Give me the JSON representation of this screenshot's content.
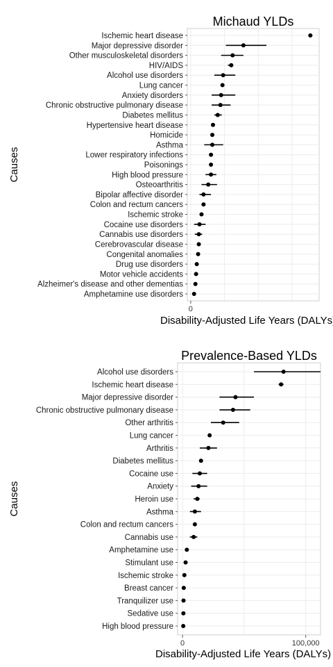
{
  "chart_data": [
    {
      "type": "scatter",
      "title": "Michaud YLDs",
      "xlabel": "Disability-Adjusted Life Years (DALYs)",
      "ylabel": "Causes",
      "xlim": [
        -5000,
        190000
      ],
      "xticks": [
        0
      ],
      "xtick_labels": [
        "0"
      ],
      "grid": true,
      "legend": "none",
      "point_color": "#000000",
      "points": [
        {
          "cause": "Ischemic heart disease",
          "value": 177000,
          "low": 174000,
          "high": 180000
        },
        {
          "cause": "Major depressive disorder",
          "value": 78000,
          "low": 52000,
          "high": 112000
        },
        {
          "cause": "Other musculoskeletal disorders",
          "value": 62000,
          "low": 45000,
          "high": 78000
        },
        {
          "cause": "HIV/AIDS",
          "value": 60000,
          "low": 55000,
          "high": 63000
        },
        {
          "cause": "Alcohol use disorders",
          "value": 48000,
          "low": 35000,
          "high": 66000
        },
        {
          "cause": "Lung cancer",
          "value": 47000,
          "low": 47000,
          "high": 47000
        },
        {
          "cause": "Anxiety disorders",
          "value": 45000,
          "low": 31000,
          "high": 66000
        },
        {
          "cause": "Chronic obstructive pulmonary disease",
          "value": 44000,
          "low": 31000,
          "high": 59000
        },
        {
          "cause": "Diabetes mellitus",
          "value": 40000,
          "low": 35000,
          "high": 46000
        },
        {
          "cause": "Hypertensive heart disease",
          "value": 33000,
          "low": 33000,
          "high": 33000
        },
        {
          "cause": "Homicide",
          "value": 32000,
          "low": 32000,
          "high": 32000
        },
        {
          "cause": "Asthma",
          "value": 32000,
          "low": 20000,
          "high": 48000
        },
        {
          "cause": "Lower respiratory infections",
          "value": 30000,
          "low": 30000,
          "high": 30000
        },
        {
          "cause": "Poisonings",
          "value": 30000,
          "low": 30000,
          "high": 30000
        },
        {
          "cause": "High blood pressure",
          "value": 30000,
          "low": 22000,
          "high": 38000
        },
        {
          "cause": "Osteoarthritis",
          "value": 26000,
          "low": 16000,
          "high": 39000
        },
        {
          "cause": "Bipolar affective disorder",
          "value": 19000,
          "low": 13000,
          "high": 30000
        },
        {
          "cause": "Colon and rectum cancers",
          "value": 19000,
          "low": 19000,
          "high": 19000
        },
        {
          "cause": "Ischemic stroke",
          "value": 16000,
          "low": 16000,
          "high": 16000
        },
        {
          "cause": "Cocaine use disorders",
          "value": 13000,
          "low": 5000,
          "high": 22000
        },
        {
          "cause": "Cannabis use disorders",
          "value": 12000,
          "low": 6000,
          "high": 17000
        },
        {
          "cause": "Cerebrovascular disease",
          "value": 12000,
          "low": 12000,
          "high": 12000
        },
        {
          "cause": "Congenital anomalies",
          "value": 11000,
          "low": 11000,
          "high": 11000
        },
        {
          "cause": "Drug use disorders",
          "value": 9000,
          "low": 9000,
          "high": 9000
        },
        {
          "cause": "Motor vehicle accidents",
          "value": 8000,
          "low": 8000,
          "high": 8000
        },
        {
          "cause": "Alzheimer's disease and other dementias",
          "value": 7000,
          "low": 7000,
          "high": 7000
        },
        {
          "cause": "Amphetamine use disorders",
          "value": 5000,
          "low": 5000,
          "high": 5000
        }
      ]
    },
    {
      "type": "scatter",
      "title": "Prevalence-Based YLDs",
      "xlabel": "Disability-Adjusted Life Years (DALYs)",
      "ylabel": "Causes",
      "xlim": [
        -4000,
        112000
      ],
      "xticks": [
        0,
        100000
      ],
      "xtick_labels": [
        "0",
        "100,000"
      ],
      "grid": true,
      "legend": "none",
      "point_color": "#000000",
      "points": [
        {
          "cause": "Alcohol use disorders",
          "value": 82000,
          "low": 58000,
          "high": 112000
        },
        {
          "cause": "Ischemic heart disease",
          "value": 80000,
          "low": 78000,
          "high": 82000
        },
        {
          "cause": "Major depressive disorder",
          "value": 43000,
          "low": 30000,
          "high": 58000
        },
        {
          "cause": "Chronic obstructive pulmonary disease",
          "value": 41000,
          "low": 30000,
          "high": 55000
        },
        {
          "cause": "Other arthritis",
          "value": 33000,
          "low": 23000,
          "high": 46000
        },
        {
          "cause": "Lung cancer",
          "value": 22000,
          "low": 22000,
          "high": 22000
        },
        {
          "cause": "Arthritis",
          "value": 21000,
          "low": 14000,
          "high": 28000
        },
        {
          "cause": "Diabetes mellitus",
          "value": 15000,
          "low": 15000,
          "high": 15000
        },
        {
          "cause": "Cocaine use",
          "value": 14000,
          "low": 8000,
          "high": 20000
        },
        {
          "cause": "Anxiety",
          "value": 13000,
          "low": 7000,
          "high": 20000
        },
        {
          "cause": "Heroin use",
          "value": 12000,
          "low": 9000,
          "high": 14000
        },
        {
          "cause": "Asthma",
          "value": 10000,
          "low": 6000,
          "high": 15000
        },
        {
          "cause": "Colon and rectum cancers",
          "value": 10000,
          "low": 10000,
          "high": 10000
        },
        {
          "cause": "Cannabis use",
          "value": 9000,
          "low": 6000,
          "high": 12000
        },
        {
          "cause": "Amphetamine use",
          "value": 3500,
          "low": 3500,
          "high": 3500
        },
        {
          "cause": "Stimulant use",
          "value": 2500,
          "low": 2500,
          "high": 2500
        },
        {
          "cause": "Ischemic stroke",
          "value": 1500,
          "low": 1500,
          "high": 1500
        },
        {
          "cause": "Breast cancer",
          "value": 1000,
          "low": 1000,
          "high": 1000
        },
        {
          "cause": "Tranquilizer use",
          "value": 800,
          "low": 800,
          "high": 800
        },
        {
          "cause": "Sedative use",
          "value": 700,
          "low": 700,
          "high": 700
        },
        {
          "cause": "High blood pressure",
          "value": 600,
          "low": 600,
          "high": 600
        }
      ]
    }
  ]
}
